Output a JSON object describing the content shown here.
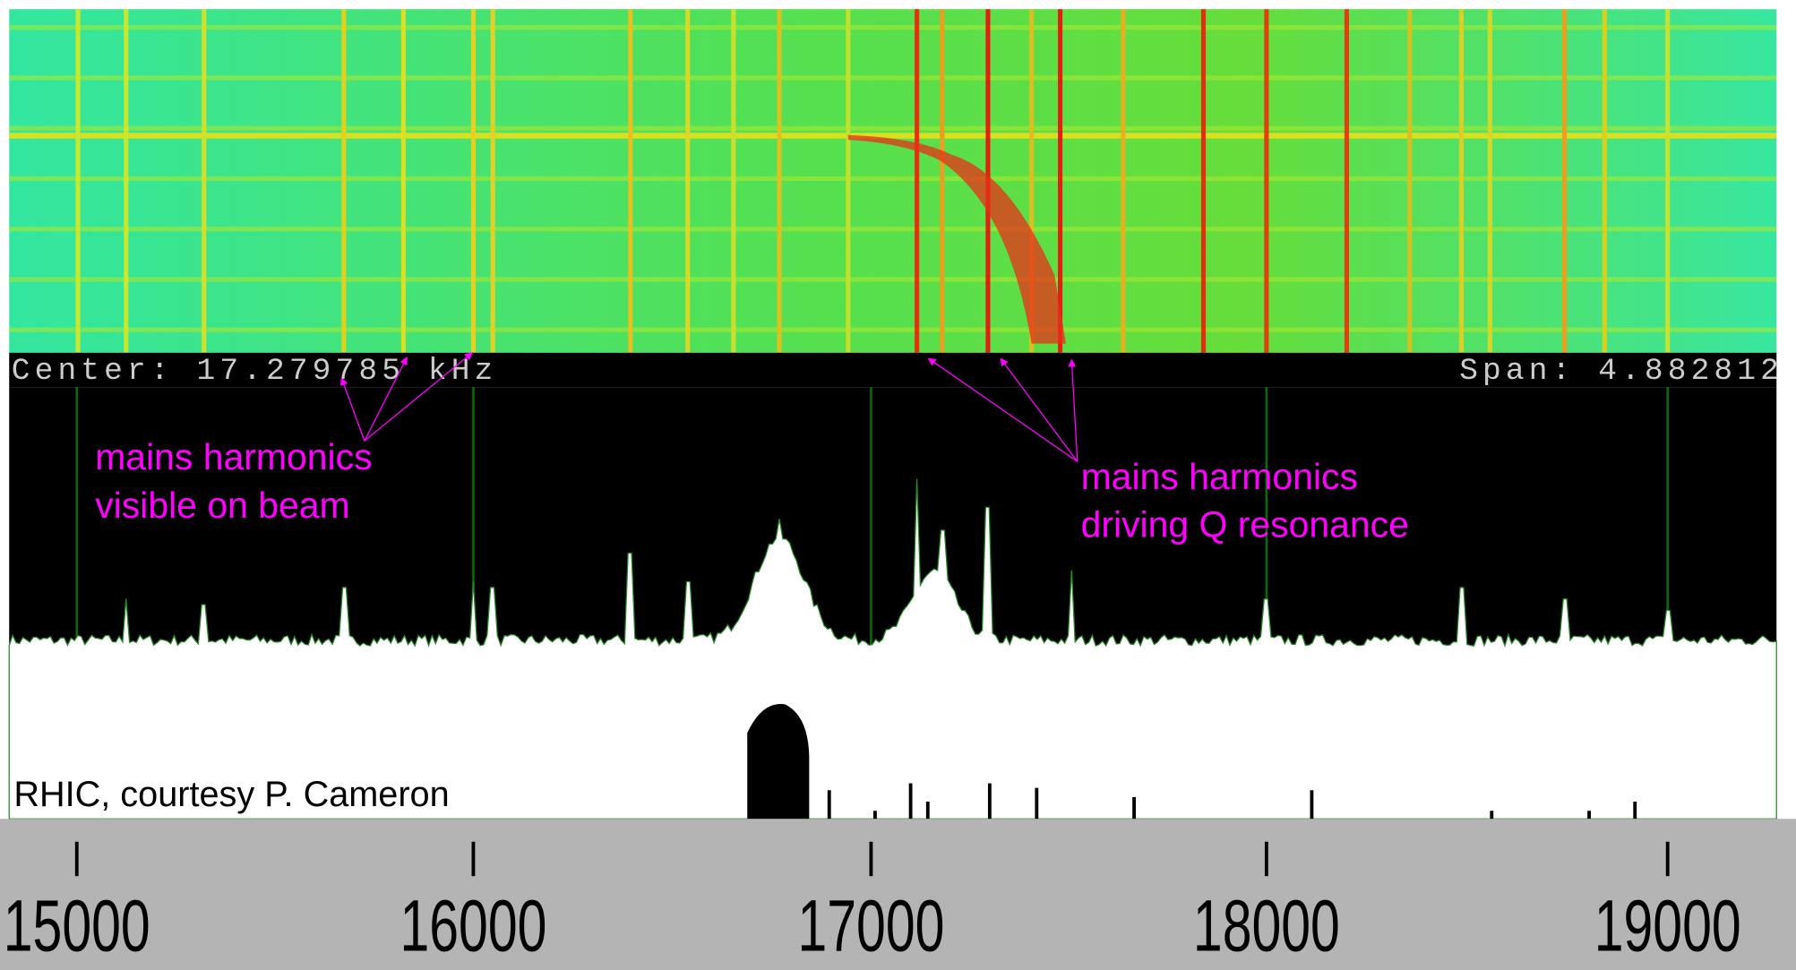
{
  "status_bar": {
    "center": "Center: 17.279785 kHz",
    "span": "Span: 4.882812"
  },
  "annotations": [
    {
      "lines": [
        "mains harmonics",
        "visible on beam"
      ]
    },
    {
      "lines": [
        "mains harmonics",
        "driving Q resonance"
      ]
    }
  ],
  "credit": "RHIC, courtesy P. Cameron",
  "axis": {
    "ticks": [
      "15000",
      "16000",
      "17000",
      "18000",
      "19000"
    ]
  }
}
